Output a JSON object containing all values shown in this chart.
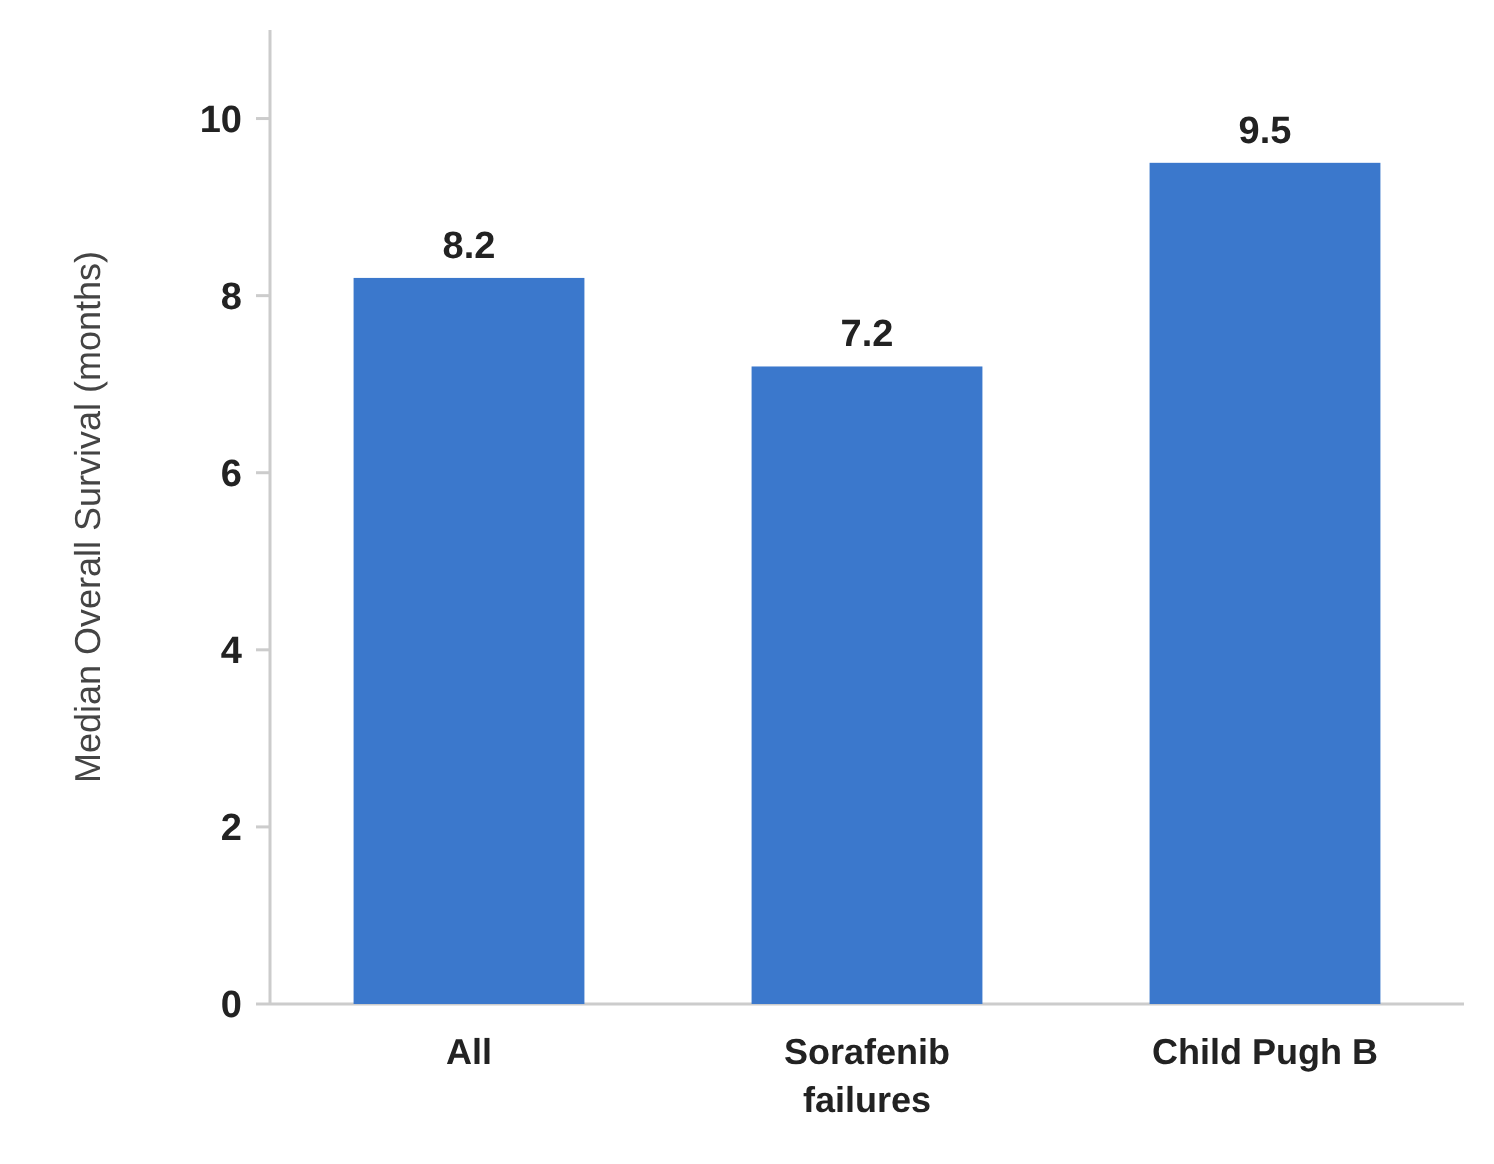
{
  "chart_data": {
    "type": "bar",
    "ylabel": "Median Overall Survival (months)",
    "categories": [
      "All",
      "Sorafenib failures",
      "Child Pugh B"
    ],
    "values": [
      8.2,
      7.2,
      9.5
    ],
    "color": "#3b78cc",
    "ylim": [
      0,
      11
    ],
    "yticks": [
      0,
      2,
      4,
      6,
      8,
      10
    ],
    "grid": false,
    "data_labels": true
  }
}
